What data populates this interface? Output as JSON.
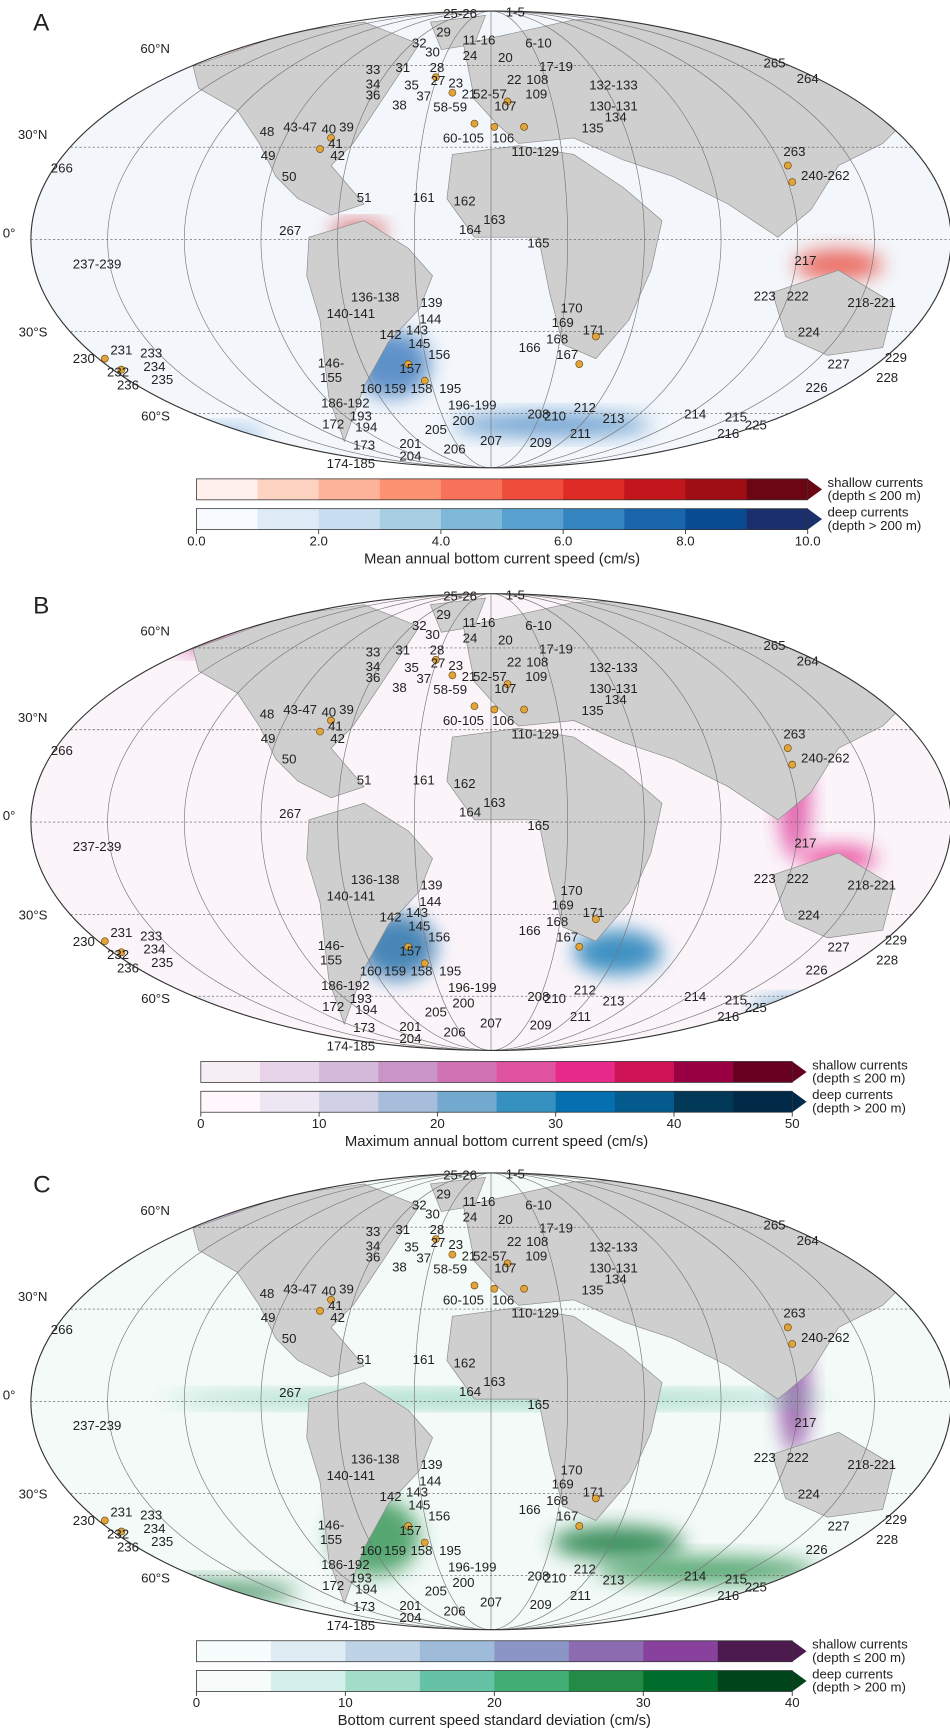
{
  "latitude_labels": [
    "60°N",
    "30°N",
    "0°",
    "30°S",
    "60°S"
  ],
  "site_labels": [
    "25-26",
    "1-5",
    "29",
    "11-16",
    "32",
    "6-10",
    "30",
    "24",
    "20",
    "33",
    "31",
    "28",
    "17-19",
    "34",
    "35",
    "27",
    "23",
    "22",
    "108",
    "132-133",
    "36",
    "37",
    "21",
    "52-57",
    "109",
    "38",
    "58-59",
    "107",
    "130-131",
    "134",
    "48",
    "43-47",
    "40",
    "39",
    "135",
    "60-105",
    "106",
    "41",
    "42",
    "110-129",
    "49",
    "50",
    "266",
    "51",
    "161",
    "162",
    "163",
    "164",
    "165",
    "267",
    "237-239",
    "265",
    "264",
    "263",
    "240-262",
    "217",
    "223",
    "222",
    "218-221",
    "224",
    "227",
    "229",
    "228",
    "226",
    "225",
    "136-138",
    "139",
    "140-141",
    "144",
    "142",
    "143",
    "145",
    "156",
    "146-",
    "155",
    "157",
    "160",
    "159",
    "158",
    "195",
    "186-192",
    "196-199",
    "193",
    "200",
    "172",
    "194",
    "205",
    "173",
    "201",
    "174-185",
    "204",
    "206",
    "207",
    "208",
    "209",
    "210",
    "211",
    "212",
    "213",
    "214",
    "215",
    "216",
    "166",
    "167",
    "168",
    "169",
    "170",
    "171",
    "230",
    "231",
    "233",
    "232",
    "234",
    "235",
    "236"
  ],
  "panels": [
    {
      "label": "A",
      "colorbar": {
        "title": "Mean annual bottom current speed (cm/s)",
        "shallow_label": "shallow currents",
        "shallow_depth": "(depth ≤ 200 m)",
        "deep_label": "deep currents",
        "deep_depth": "(depth > 200 m)",
        "lim": [
          0,
          10
        ],
        "ticks": [
          {
            "value": 0,
            "label": "0.0"
          },
          {
            "value": 2,
            "label": "2.0"
          },
          {
            "value": 4,
            "label": "4.0"
          },
          {
            "value": 6,
            "label": "6.0"
          },
          {
            "value": 8,
            "label": "8.0"
          },
          {
            "value": 10,
            "label": "10.0"
          }
        ],
        "shallow_colors": [
          "#fff0eb",
          "#fcd3c1",
          "#fcb399",
          "#fc9272",
          "#f87259",
          "#ef4d3c",
          "#de2b25",
          "#c1161c",
          "#9f0d15",
          "#6b0612"
        ],
        "deep_colors": [
          "#f7fbff",
          "#deebf7",
          "#c9ddf0",
          "#a8cee4",
          "#7fb9da",
          "#57a0cf",
          "#3484bf",
          "#1966ad",
          "#084b93",
          "#1a2f6b"
        ]
      }
    },
    {
      "label": "B",
      "colorbar": {
        "title": "Maximum annual bottom current speed (cm/s)",
        "shallow_label": "shallow currents",
        "shallow_depth": "(depth ≤ 200 m)",
        "deep_label": "deep currents",
        "deep_depth": "(depth > 200 m)",
        "lim": [
          0,
          50
        ],
        "ticks": [
          0,
          10,
          20,
          30,
          40,
          50
        ],
        "shallow_colors": [
          "#f6eef5",
          "#e7d4e8",
          "#d4b9da",
          "#c994c7",
          "#d172b4",
          "#df52a0",
          "#e7298a",
          "#ce1256",
          "#980043",
          "#67001f"
        ],
        "deep_colors": [
          "#fff7fb",
          "#ece7f2",
          "#d0d1e6",
          "#a6bddb",
          "#74a9cf",
          "#3690c0",
          "#0570b0",
          "#045a8d",
          "#023858",
          "#012a48"
        ]
      }
    },
    {
      "label": "C",
      "colorbar": {
        "title": "Bottom current speed standard deviation (cm/s)",
        "shallow_label": "shallow currents",
        "shallow_depth": "(depth ≤ 200 m)",
        "deep_label": "deep currents",
        "deep_depth": "(depth > 200 m)",
        "lim": [
          0,
          40
        ],
        "ticks": [
          0,
          10,
          20,
          30,
          40
        ],
        "shallow_colors": [
          "#f7fcfd",
          "#e0ecf4",
          "#bfd3e6",
          "#9ebcda",
          "#8c96c6",
          "#8c6bb1",
          "#88419d",
          "#4d1a4f"
        ],
        "deep_colors": [
          "#f7fcfb",
          "#d5efed",
          "#a3dcc9",
          "#66c2a4",
          "#41ae76",
          "#238b45",
          "#006d2c",
          "#00441b"
        ]
      }
    }
  ]
}
